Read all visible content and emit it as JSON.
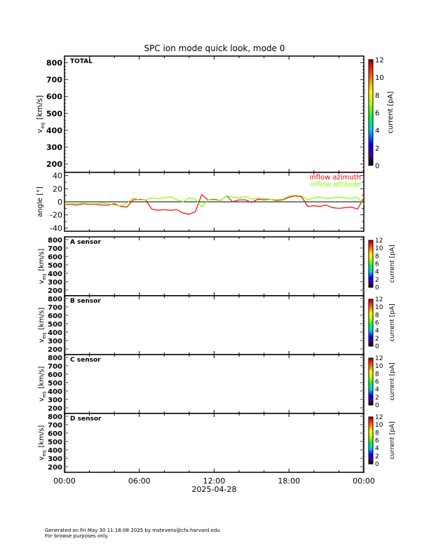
{
  "chart_data": {
    "title": "SPC ion mode quick look, mode 0",
    "x_tick_labels": [
      "00:00",
      "06:00",
      "12:00",
      "18:00",
      "00:00"
    ],
    "x_date_label": "2025-04-28",
    "x_range_hours": [
      0,
      24
    ],
    "colorbar": {
      "label": "current [pA]",
      "range": [
        0,
        12
      ],
      "ticks": [
        "0",
        "2",
        "4",
        "6",
        "8",
        "10",
        "12"
      ],
      "colormap": "rainbow"
    },
    "velocity_panels": [
      {
        "label": "TOTAL",
        "type": "heatmap",
        "ylabel": "v_eq [km/s]",
        "ylabel_main": "v",
        "ylabel_sub": "eq",
        "ylabel_unit": "[km/s]",
        "ylim": [
          150,
          840
        ],
        "yticks": [
          200,
          300,
          400,
          500,
          600,
          700,
          800
        ],
        "values": "empty"
      },
      {
        "label": "A sensor",
        "type": "heatmap",
        "ylabel_main": "v",
        "ylabel_sub": "eq",
        "ylabel_unit": "[km/s]",
        "ylim": [
          133,
          833
        ],
        "yticks": [
          200,
          300,
          400,
          500,
          600,
          700,
          800
        ],
        "values": "empty"
      },
      {
        "label": "B sensor",
        "type": "heatmap",
        "ylabel_main": "v",
        "ylabel_sub": "eq",
        "ylabel_unit": "[km/s]",
        "ylim": [
          133,
          833
        ],
        "yticks": [
          200,
          300,
          400,
          500,
          600,
          700,
          800
        ],
        "values": "empty"
      },
      {
        "label": "C sensor",
        "type": "heatmap",
        "ylabel_main": "v",
        "ylabel_sub": "eq",
        "ylabel_unit": "[km/s]",
        "ylim": [
          133,
          833
        ],
        "yticks": [
          200,
          300,
          400,
          500,
          600,
          700,
          800
        ],
        "values": "empty"
      },
      {
        "label": "D sensor",
        "type": "heatmap",
        "ylabel_main": "v",
        "ylabel_sub": "eq",
        "ylabel_unit": "[km/s]",
        "ylim": [
          133,
          833
        ],
        "yticks": [
          200,
          300,
          400,
          500,
          600,
          700,
          800
        ],
        "values": "empty"
      }
    ],
    "angle_panel": {
      "type": "line",
      "ylabel": "angle [°]",
      "ylim": [
        -45,
        45
      ],
      "yticks": [
        -40,
        -20,
        0,
        20,
        40
      ],
      "zero_line": true,
      "legend_placement": "top-right",
      "x_hours": [
        0,
        0.5,
        1,
        1.5,
        2,
        2.5,
        3,
        3.5,
        4,
        4.5,
        5,
        5.5,
        6,
        6.5,
        7,
        7.5,
        8,
        8.5,
        9,
        9.5,
        10,
        10.5,
        11,
        11.5,
        12,
        12.5,
        13,
        13.5,
        14,
        14.5,
        15,
        15.5,
        16,
        16.5,
        17,
        17.5,
        18,
        18.5,
        19,
        19.5,
        20,
        20.5,
        21,
        21.5,
        22,
        22.5,
        23,
        23.5,
        24
      ],
      "series": [
        {
          "name": "inflow azimuth",
          "color": "#ff0000",
          "values": [
            -4,
            -4,
            -5,
            -3,
            -4,
            -4,
            -5,
            -5,
            -3,
            -7,
            -8,
            3,
            4,
            3,
            -11,
            -13,
            -12,
            -13,
            -12,
            -17,
            -19,
            -15,
            11,
            3,
            4,
            2,
            9,
            0,
            3,
            3,
            -1,
            4,
            3,
            4,
            2,
            3,
            7,
            9,
            8,
            -7,
            -6,
            -7,
            -5,
            -9,
            -10,
            -9,
            -8,
            -11,
            6
          ]
        },
        {
          "name": "inflow attitude",
          "color": "#80ff00",
          "values": [
            -3,
            -3,
            -3,
            -2,
            -3,
            -3,
            -2,
            -3,
            -5,
            -6,
            -2,
            6,
            3,
            3,
            6,
            5,
            6,
            8,
            3,
            0,
            6,
            4,
            -8,
            3,
            3,
            2,
            9,
            7,
            6,
            8,
            4,
            6,
            5,
            4,
            3,
            4,
            9,
            10,
            9,
            3,
            6,
            7,
            5,
            6,
            7,
            6,
            5,
            7,
            -4
          ]
        }
      ]
    }
  },
  "footer": {
    "line1": "Generated on Fri May 30 11:18:08 2025 by mstevens@cfa.harvard.edu",
    "line2": "For browse purposes only."
  }
}
